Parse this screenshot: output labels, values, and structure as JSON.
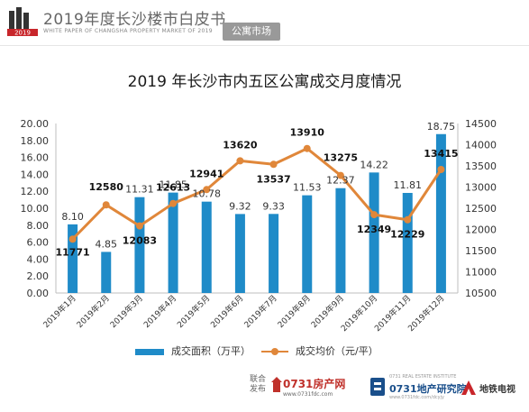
{
  "header": {
    "logo_year": "2019",
    "title": "2019年度长沙楼市白皮书",
    "subtitle": "WHITE PAPER OF CHANGSHA PROPERTY MARKET OF 2019",
    "section_tag": "公寓市场"
  },
  "chart_data": {
    "type": "bar",
    "title": "2019 年长沙市内五区公寓成交月度情况",
    "categories": [
      "2019年1月",
      "2019年2月",
      "2019年3月",
      "2019年4月",
      "2019年5月",
      "2019年6月",
      "2019年7月",
      "2019年8月",
      "2019年9月",
      "2019年10月",
      "2019年11月",
      "2019年12月"
    ],
    "series": [
      {
        "name": "成交面积（万平）",
        "type": "bar",
        "axis": "left",
        "values": [
          8.1,
          4.85,
          11.31,
          11.85,
          10.78,
          9.32,
          9.33,
          11.53,
          12.37,
          14.22,
          11.81,
          18.75
        ],
        "labels": [
          "8.10",
          "4.85",
          "11.31",
          "11.85",
          "10.78",
          "9.32",
          "9.33",
          "11.53",
          "12.37",
          "14.22",
          "11.81",
          "18.75"
        ]
      },
      {
        "name": "成交均价（元/平）",
        "type": "line",
        "axis": "right",
        "values": [
          11771,
          12580,
          12083,
          12613,
          12941,
          13620,
          13537,
          13910,
          13275,
          12349,
          12229,
          13415
        ],
        "labels": [
          "11771",
          "12580",
          "12083",
          "12613",
          "12941",
          "13620",
          "13537",
          "13910",
          "13275",
          "12349",
          "12229",
          "13415"
        ]
      }
    ],
    "y_left": {
      "ylim": [
        0,
        20
      ],
      "ticks": [
        "0.00",
        "2.00",
        "4.00",
        "6.00",
        "8.00",
        "10.00",
        "12.00",
        "14.00",
        "16.00",
        "18.00",
        "20.00"
      ]
    },
    "y_right": {
      "ylim": [
        10500,
        14500
      ],
      "ticks": [
        "10500",
        "11000",
        "11500",
        "12000",
        "12500",
        "13000",
        "13500",
        "14000",
        "14500"
      ]
    },
    "grid": false,
    "legend_position": "bottom",
    "colors": {
      "bar": "#1f8bc8",
      "line": "#e0873a",
      "axis": "#bfbfbf"
    }
  },
  "footer": {
    "co_label": "联合发布",
    "logo_fdc": "0731房产网",
    "logo_fdc_url": "www.0731fdc.com",
    "logo_yjy_sub": "0731 REAL ESTATE INSTITUTE",
    "logo_yjy": "0731地产研究院",
    "logo_yjy_url": "www.0731fdc.com/dcyjy",
    "logo_tv": "地铁电视"
  }
}
